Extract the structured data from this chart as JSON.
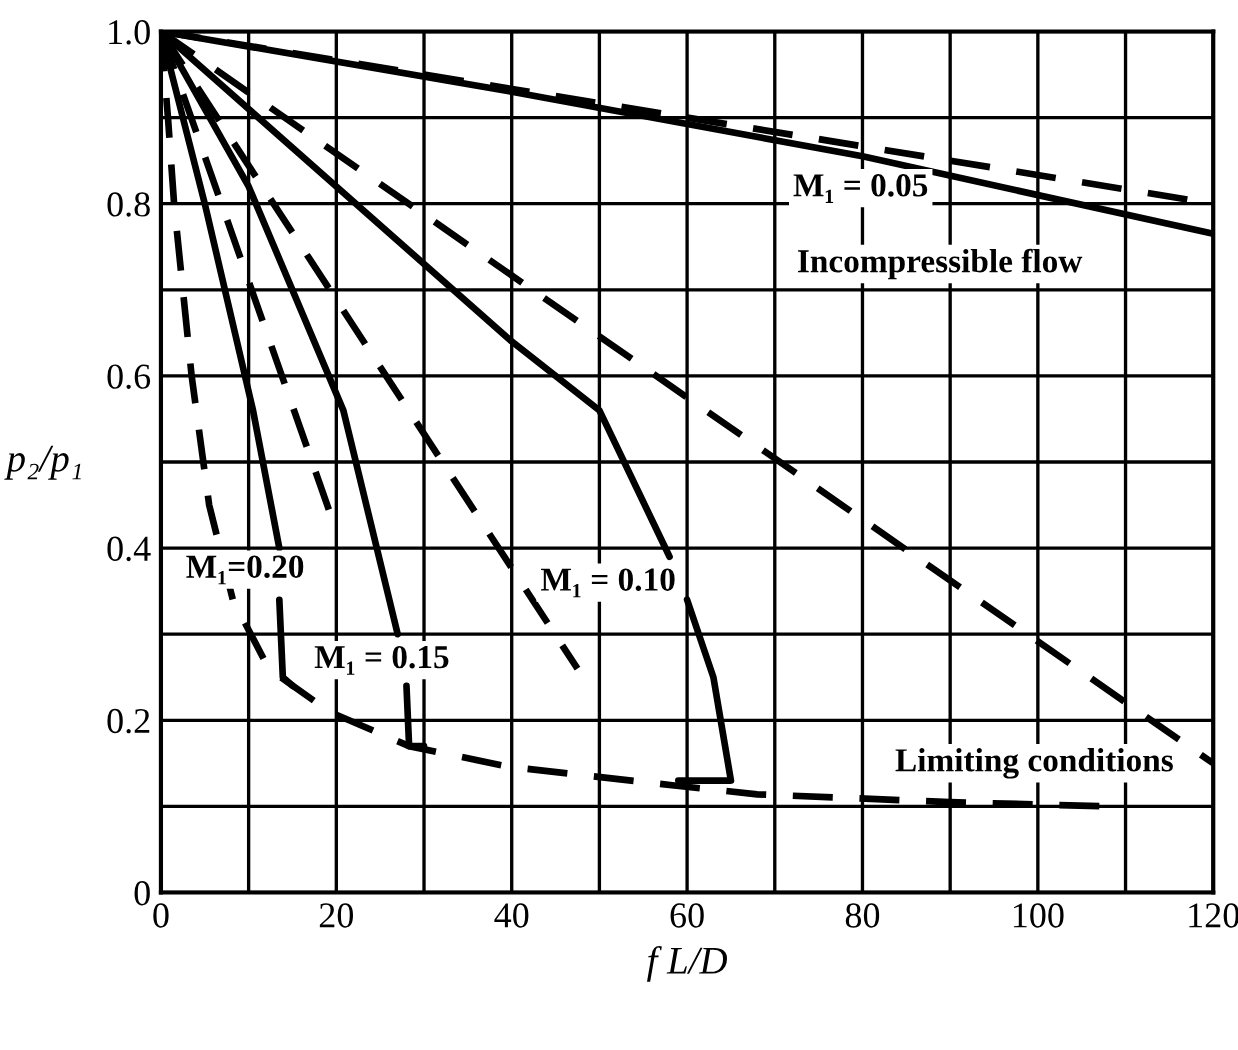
{
  "chart_data": {
    "type": "line",
    "xlabel": "f L/D",
    "ylabel": "p₂/p₁",
    "xlim": [
      0,
      120
    ],
    "ylim": [
      0,
      1.0
    ],
    "xticks": [
      0,
      {
        "value": 10,
        "label": null
      },
      20,
      {
        "value": 30,
        "label": null
      },
      40,
      {
        "value": 50,
        "label": null
      },
      60,
      {
        "value": 70,
        "label": null
      },
      80,
      {
        "value": 90,
        "label": null
      },
      100,
      {
        "value": 110,
        "label": null
      },
      120
    ],
    "yticks": [
      0,
      {
        "value": 0.1,
        "label": null
      },
      0.2,
      {
        "value": 0.3,
        "label": null
      },
      0.4,
      {
        "value": 0.5,
        "label": null
      },
      0.6,
      {
        "value": 0.7,
        "label": null
      },
      0.8,
      {
        "value": 0.9,
        "label": null
      },
      {
        "value": 1.0,
        "label": "1.0"
      }
    ],
    "grid": true,
    "marker": "none",
    "series": [
      {
        "color": "#000000",
        "line_style": "solid",
        "x": [
          0,
          40,
          80,
          120
        ],
        "values": [
          1.0,
          0.93,
          0.855,
          0.765
        ]
      },
      {
        "color": "#000000",
        "line_style": "dashed",
        "x": [
          0,
          120
        ],
        "values": [
          1.0,
          0.8
        ]
      },
      {
        "color": "#000000",
        "line_style": "solid",
        "x": [
          0,
          20,
          40,
          50,
          58
        ],
        "values": [
          1.0,
          0.82,
          0.64,
          0.56,
          0.39
        ]
      },
      {
        "color": "#000000",
        "line_style": "solid",
        "x": [
          60,
          63,
          65,
          59
        ],
        "values": [
          0.34,
          0.25,
          0.13,
          0.13
        ]
      },
      {
        "color": "#000000",
        "line_style": "dashed",
        "x": [
          0,
          120
        ],
        "values": [
          1.0,
          0.15
        ]
      },
      {
        "color": "#000000",
        "line_style": "solid",
        "x": [
          0,
          10,
          20.8,
          27
        ],
        "values": [
          1.0,
          0.82,
          0.56,
          0.3
        ]
      },
      {
        "color": "#000000",
        "line_style": "solid",
        "x": [
          28,
          28.3,
          30
        ],
        "values": [
          0.24,
          0.17,
          0.17
        ]
      },
      {
        "color": "#000000",
        "line_style": "dashed",
        "x": [
          0,
          47.5
        ],
        "values": [
          1.0,
          0.26
        ]
      },
      {
        "color": "#000000",
        "line_style": "solid",
        "x": [
          0,
          5,
          10.5,
          13.5
        ],
        "values": [
          1.0,
          0.8,
          0.56,
          0.4
        ]
      },
      {
        "color": "#000000",
        "line_style": "solid",
        "x": [
          13.5,
          13.9,
          15
        ],
        "values": [
          0.34,
          0.25,
          0.24
        ]
      },
      {
        "color": "#000000",
        "line_style": "dashed",
        "x": [
          0,
          20
        ],
        "values": [
          1.0,
          0.42
        ]
      },
      {
        "color": "#000000",
        "line_style": "dashed",
        "x": [
          0,
          0.8,
          1.5,
          3.5,
          5.5,
          8.2,
          12.3,
          19.2,
          28.3,
          39.7,
          58.8,
          68,
          90,
          108
        ],
        "values": [
          1.0,
          0.9,
          0.8,
          0.6,
          0.45,
          0.34,
          0.26,
          0.21,
          0.17,
          0.146,
          0.124,
          0.114,
          0.105,
          0.1
        ]
      }
    ],
    "annotations": [
      "M₁ = 0.05",
      "Incompressible flow",
      "M₁=0.20",
      "M₁ = 0.15",
      "M₁ = 0.10",
      "Limiting conditions"
    ]
  }
}
